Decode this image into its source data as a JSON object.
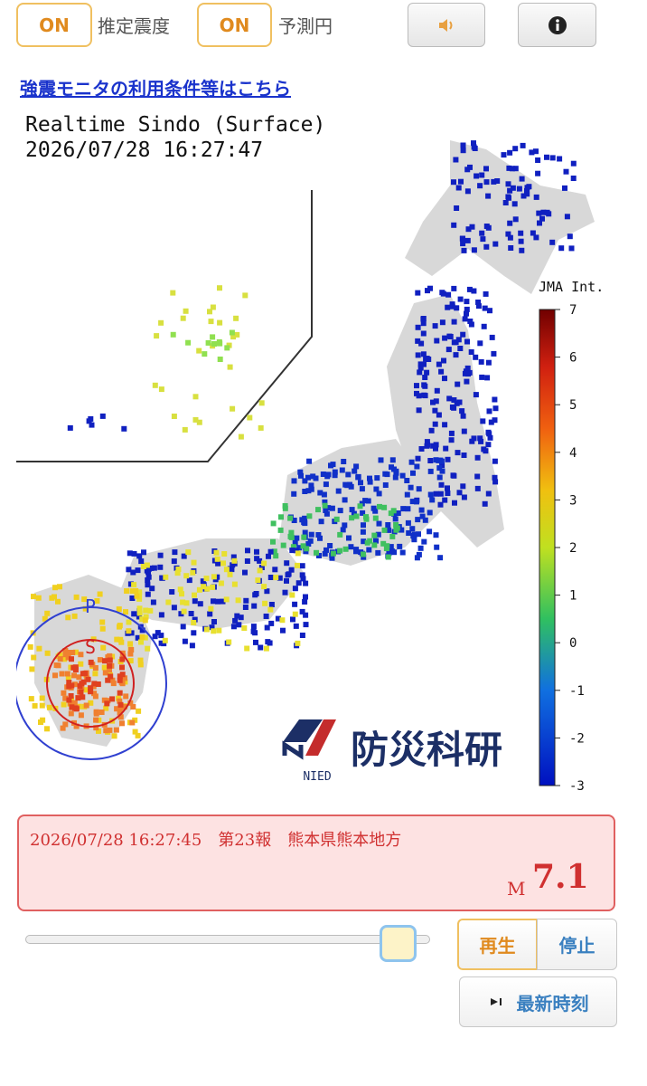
{
  "toolbar": {
    "intensity_toggle": "ON",
    "intensity_label": "推定震度",
    "circle_toggle": "ON",
    "circle_label": "予測円"
  },
  "terms_link": "強震モニタの利用条件等はこちら",
  "map": {
    "title": "Realtime Sindo (Surface)",
    "timestamp": "2026/07/28 16:27:47",
    "scale_title": "JMA Int.",
    "scale_ticks": [
      7,
      6,
      5,
      4,
      3,
      2,
      1,
      0,
      -1,
      -2,
      -3
    ],
    "p_wave": "P",
    "s_wave": "S",
    "logo_abbr": "NIED",
    "logo_name": "防災科研"
  },
  "eew": {
    "report": "2026/07/28 16:27:45　第23報　熊本県熊本地方",
    "magnitude_prefix": "M",
    "magnitude": "7.1"
  },
  "controls": {
    "play": "再生",
    "stop": "停止",
    "latest": "最新時刻"
  }
}
